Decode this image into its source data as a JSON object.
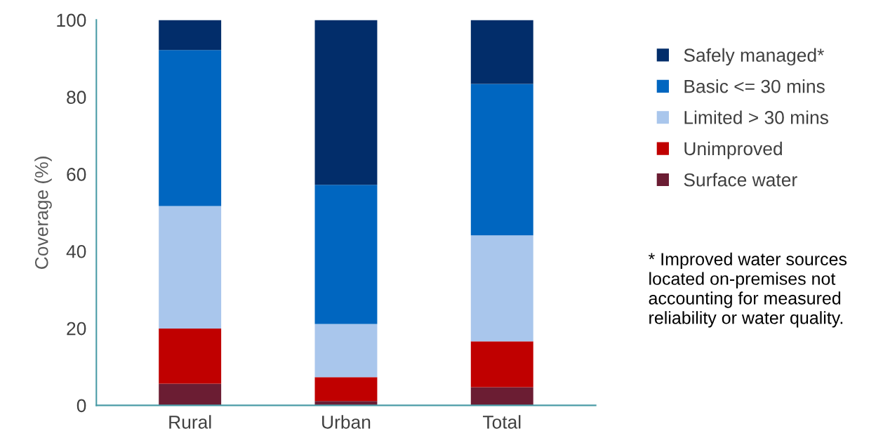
{
  "chart_data": {
    "type": "bar",
    "stacked": true,
    "ylabel": "Coverage (%)",
    "categories": [
      "Rural",
      "Urban",
      "Total"
    ],
    "series": [
      {
        "name": "Surface water",
        "color": "#6b1d33",
        "values": [
          5.6,
          1.1,
          4.7
        ]
      },
      {
        "name": "Unimproved",
        "color": "#c00000",
        "values": [
          14.3,
          6.2,
          11.9
        ]
      },
      {
        "name": "Limited > 30 mins",
        "color": "#a9c6ec",
        "values": [
          31.8,
          13.8,
          27.5
        ]
      },
      {
        "name": "Basic <= 30 mins",
        "color": "#0066c0",
        "values": [
          40.5,
          36.1,
          39.3
        ]
      },
      {
        "name": "Safely managed*",
        "color": "#022d6a",
        "values": [
          7.8,
          42.8,
          16.6
        ]
      }
    ],
    "ylim": [
      0,
      100
    ],
    "yticks": [
      0,
      20,
      40,
      60,
      80,
      100
    ],
    "grid": false,
    "legend": "right",
    "annotations": [
      "* Improved water sources located on-premises not accounting for measured reliability or water quality."
    ]
  }
}
